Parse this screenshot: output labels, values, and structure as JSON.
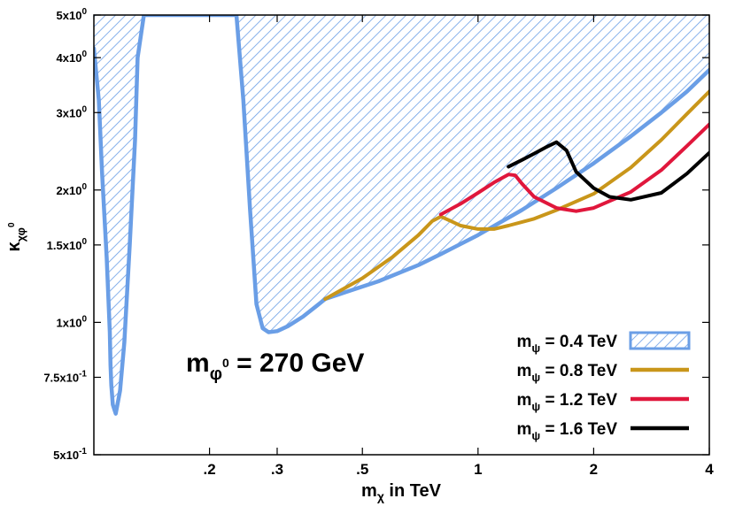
{
  "chart_data": {
    "type": "line",
    "xlabel": {
      "main": "m",
      "sub": "χ",
      "rest": " in TeV"
    },
    "ylabel": {
      "main": "κ",
      "sub": "χφ",
      "sup": "0"
    },
    "x_scale": "log",
    "y_scale": "log",
    "xlim": [
      0.1,
      4
    ],
    "ylim": [
      0.5,
      5
    ],
    "x_ticks": [
      {
        "value": 0.2,
        "label": ".2"
      },
      {
        "value": 0.3,
        "label": ".3"
      },
      {
        "value": 0.5,
        "label": ".5"
      },
      {
        "value": 1,
        "label": "1"
      },
      {
        "value": 2,
        "label": "2"
      },
      {
        "value": 4,
        "label": "4"
      }
    ],
    "y_ticks": [
      {
        "value": 0.5,
        "base": "5x10",
        "exp": "-1"
      },
      {
        "value": 0.75,
        "base": "7.5x10",
        "exp": "-1"
      },
      {
        "value": 1,
        "base": "1x10",
        "exp": "0"
      },
      {
        "value": 1.5,
        "base": "1.5x10",
        "exp": "0"
      },
      {
        "value": 2,
        "base": "2x10",
        "exp": "0"
      },
      {
        "value": 3,
        "base": "3x10",
        "exp": "0"
      },
      {
        "value": 4,
        "base": "4x10",
        "exp": "0"
      },
      {
        "value": 5,
        "base": "5x10",
        "exp": "0"
      }
    ],
    "annotation": {
      "main": "m",
      "sub": "φ",
      "subsup": "0",
      "rest": " = 270 GeV"
    },
    "legend_position": "bottom-right",
    "series": [
      {
        "name": {
          "main": "m",
          "sub": "ψ",
          "rest": " = 0.4 TeV"
        },
        "color": "#6a9ee6",
        "style": "hatched",
        "x": [
          0.1,
          0.103,
          0.105,
          0.108,
          0.11,
          0.1105,
          0.111,
          0.112,
          0.114,
          0.117,
          0.12,
          0.124,
          0.128,
          0.13,
          0.135,
          0.14,
          0.16,
          0.19,
          0.22,
          0.235,
          0.245,
          0.255,
          0.265,
          0.275,
          0.285,
          0.3,
          0.32,
          0.35,
          0.38,
          0.4,
          0.45,
          0.55,
          0.7,
          0.8,
          1.0,
          1.3,
          1.6,
          2.0,
          2.5,
          3.0,
          3.5,
          4.0
        ],
        "y": [
          4.2,
          3.2,
          2.2,
          1.4,
          0.95,
          0.8,
          0.72,
          0.65,
          0.62,
          0.7,
          0.9,
          1.5,
          2.6,
          4.0,
          5.0,
          5.0,
          5.0,
          5.0,
          5.0,
          5.0,
          3.2,
          1.8,
          1.1,
          0.97,
          0.95,
          0.955,
          0.98,
          1.03,
          1.09,
          1.13,
          1.17,
          1.24,
          1.35,
          1.43,
          1.58,
          1.8,
          2.02,
          2.3,
          2.65,
          3.0,
          3.35,
          3.75
        ]
      },
      {
        "name": {
          "main": "m",
          "sub": "ψ",
          "rest": " = 0.8 TeV"
        },
        "color": "#c9961a",
        "x": [
          0.4,
          0.5,
          0.6,
          0.7,
          0.76,
          0.8,
          0.85,
          0.9,
          1.0,
          1.1,
          1.2,
          1.4,
          1.6,
          2.0,
          2.5,
          3.0,
          3.5,
          4.0
        ],
        "y": [
          1.13,
          1.26,
          1.41,
          1.58,
          1.7,
          1.74,
          1.7,
          1.66,
          1.63,
          1.63,
          1.66,
          1.72,
          1.8,
          1.96,
          2.25,
          2.6,
          2.98,
          3.35
        ]
      },
      {
        "name": {
          "main": "m",
          "sub": "ψ",
          "rest": " = 1.2 TeV"
        },
        "color": "#e0173c",
        "x": [
          0.8,
          0.9,
          1.0,
          1.1,
          1.2,
          1.25,
          1.3,
          1.4,
          1.6,
          1.8,
          2.0,
          2.5,
          3.0,
          3.5,
          4.0
        ],
        "y": [
          1.76,
          1.86,
          1.97,
          2.08,
          2.17,
          2.16,
          2.07,
          1.93,
          1.82,
          1.79,
          1.82,
          1.98,
          2.22,
          2.52,
          2.82
        ]
      },
      {
        "name": {
          "main": "m",
          "sub": "ψ",
          "rest": " = 1.6 TeV"
        },
        "color": "#000000",
        "x": [
          1.2,
          1.3,
          1.4,
          1.5,
          1.6,
          1.7,
          1.8,
          2.0,
          2.2,
          2.5,
          3.0,
          3.5,
          4.0
        ],
        "y": [
          2.26,
          2.34,
          2.42,
          2.5,
          2.57,
          2.46,
          2.2,
          2.02,
          1.93,
          1.9,
          1.97,
          2.18,
          2.43
        ]
      }
    ]
  }
}
